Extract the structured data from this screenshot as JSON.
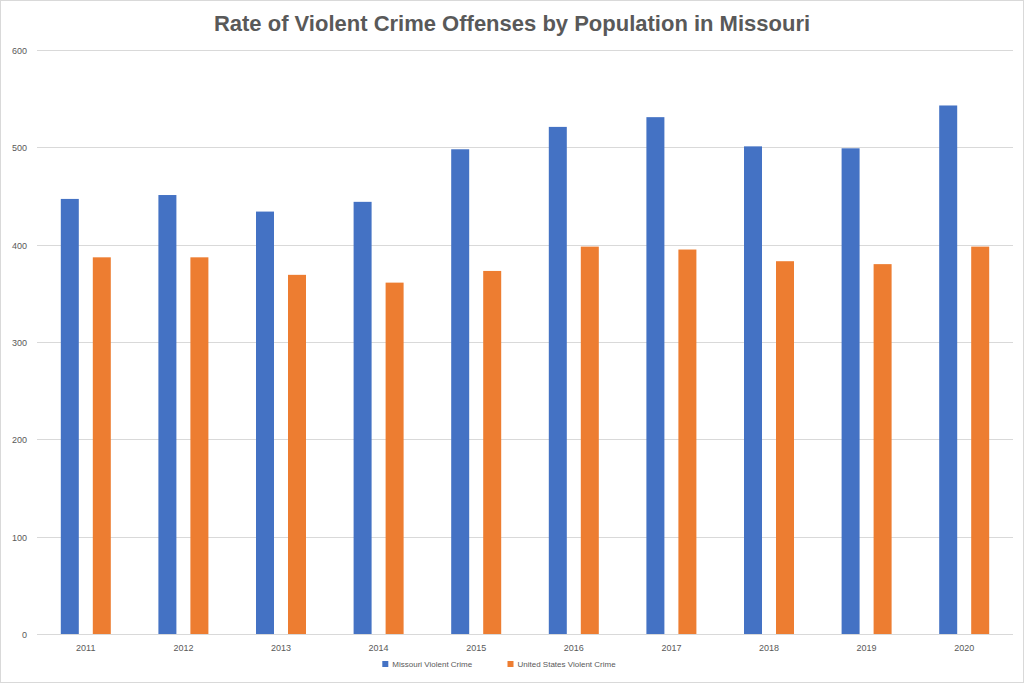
{
  "chart_data": {
    "type": "bar",
    "title": "Rate of Violent Crime Offenses by Population in Missouri",
    "categories": [
      "2011",
      "2012",
      "2013",
      "2014",
      "2015",
      "2016",
      "2017",
      "2018",
      "2019",
      "2020"
    ],
    "series": [
      {
        "name": "Missouri Violent Crime",
        "color": "#4472c4",
        "values": [
          447,
          451,
          434,
          444,
          498,
          521,
          531,
          501,
          499,
          543
        ]
      },
      {
        "name": "United States Violent Crime",
        "color": "#ed7d31",
        "values": [
          387,
          387,
          369,
          361,
          373,
          398,
          395,
          383,
          380,
          398
        ]
      }
    ],
    "ylim": [
      0,
      600
    ],
    "yticks": [
      0,
      100,
      200,
      300,
      400,
      500,
      600
    ],
    "grid": true,
    "legend": "bottom"
  }
}
